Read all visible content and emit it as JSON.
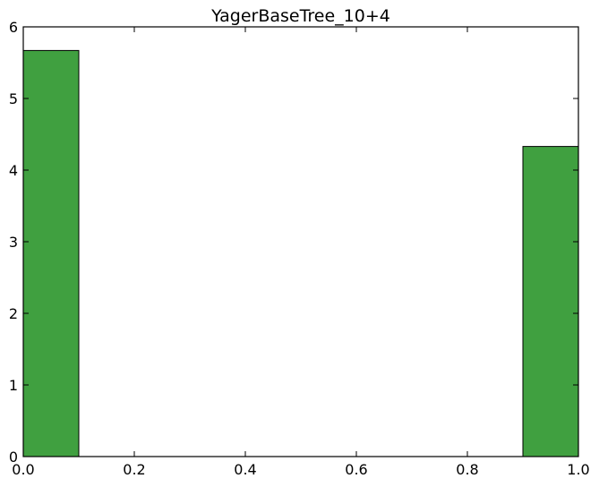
{
  "chart_data": {
    "type": "bar",
    "title": "YagerBaseTree_10+4",
    "xlabel": "",
    "ylabel": "",
    "xlim": [
      0.0,
      1.0
    ],
    "ylim": [
      0,
      6
    ],
    "bins": [
      {
        "x0": 0.0,
        "x1": 0.1,
        "value": 5.67
      },
      {
        "x0": 0.9,
        "x1": 1.0,
        "value": 4.33
      }
    ],
    "x_ticks": [
      {
        "value": 0.0,
        "label": "0.0"
      },
      {
        "value": 0.2,
        "label": "0.2"
      },
      {
        "value": 0.4,
        "label": "0.4"
      },
      {
        "value": 0.6,
        "label": "0.6"
      },
      {
        "value": 0.8,
        "label": "0.8"
      },
      {
        "value": 1.0,
        "label": "1.0"
      }
    ],
    "y_ticks": [
      {
        "value": 0,
        "label": "0"
      },
      {
        "value": 1,
        "label": "1"
      },
      {
        "value": 2,
        "label": "2"
      },
      {
        "value": 3,
        "label": "3"
      },
      {
        "value": 4,
        "label": "4"
      },
      {
        "value": 5,
        "label": "5"
      },
      {
        "value": 6,
        "label": "6"
      }
    ],
    "grid": false,
    "colors": {
      "bar_fill": "#40a040",
      "bar_edge": "#000000"
    }
  }
}
